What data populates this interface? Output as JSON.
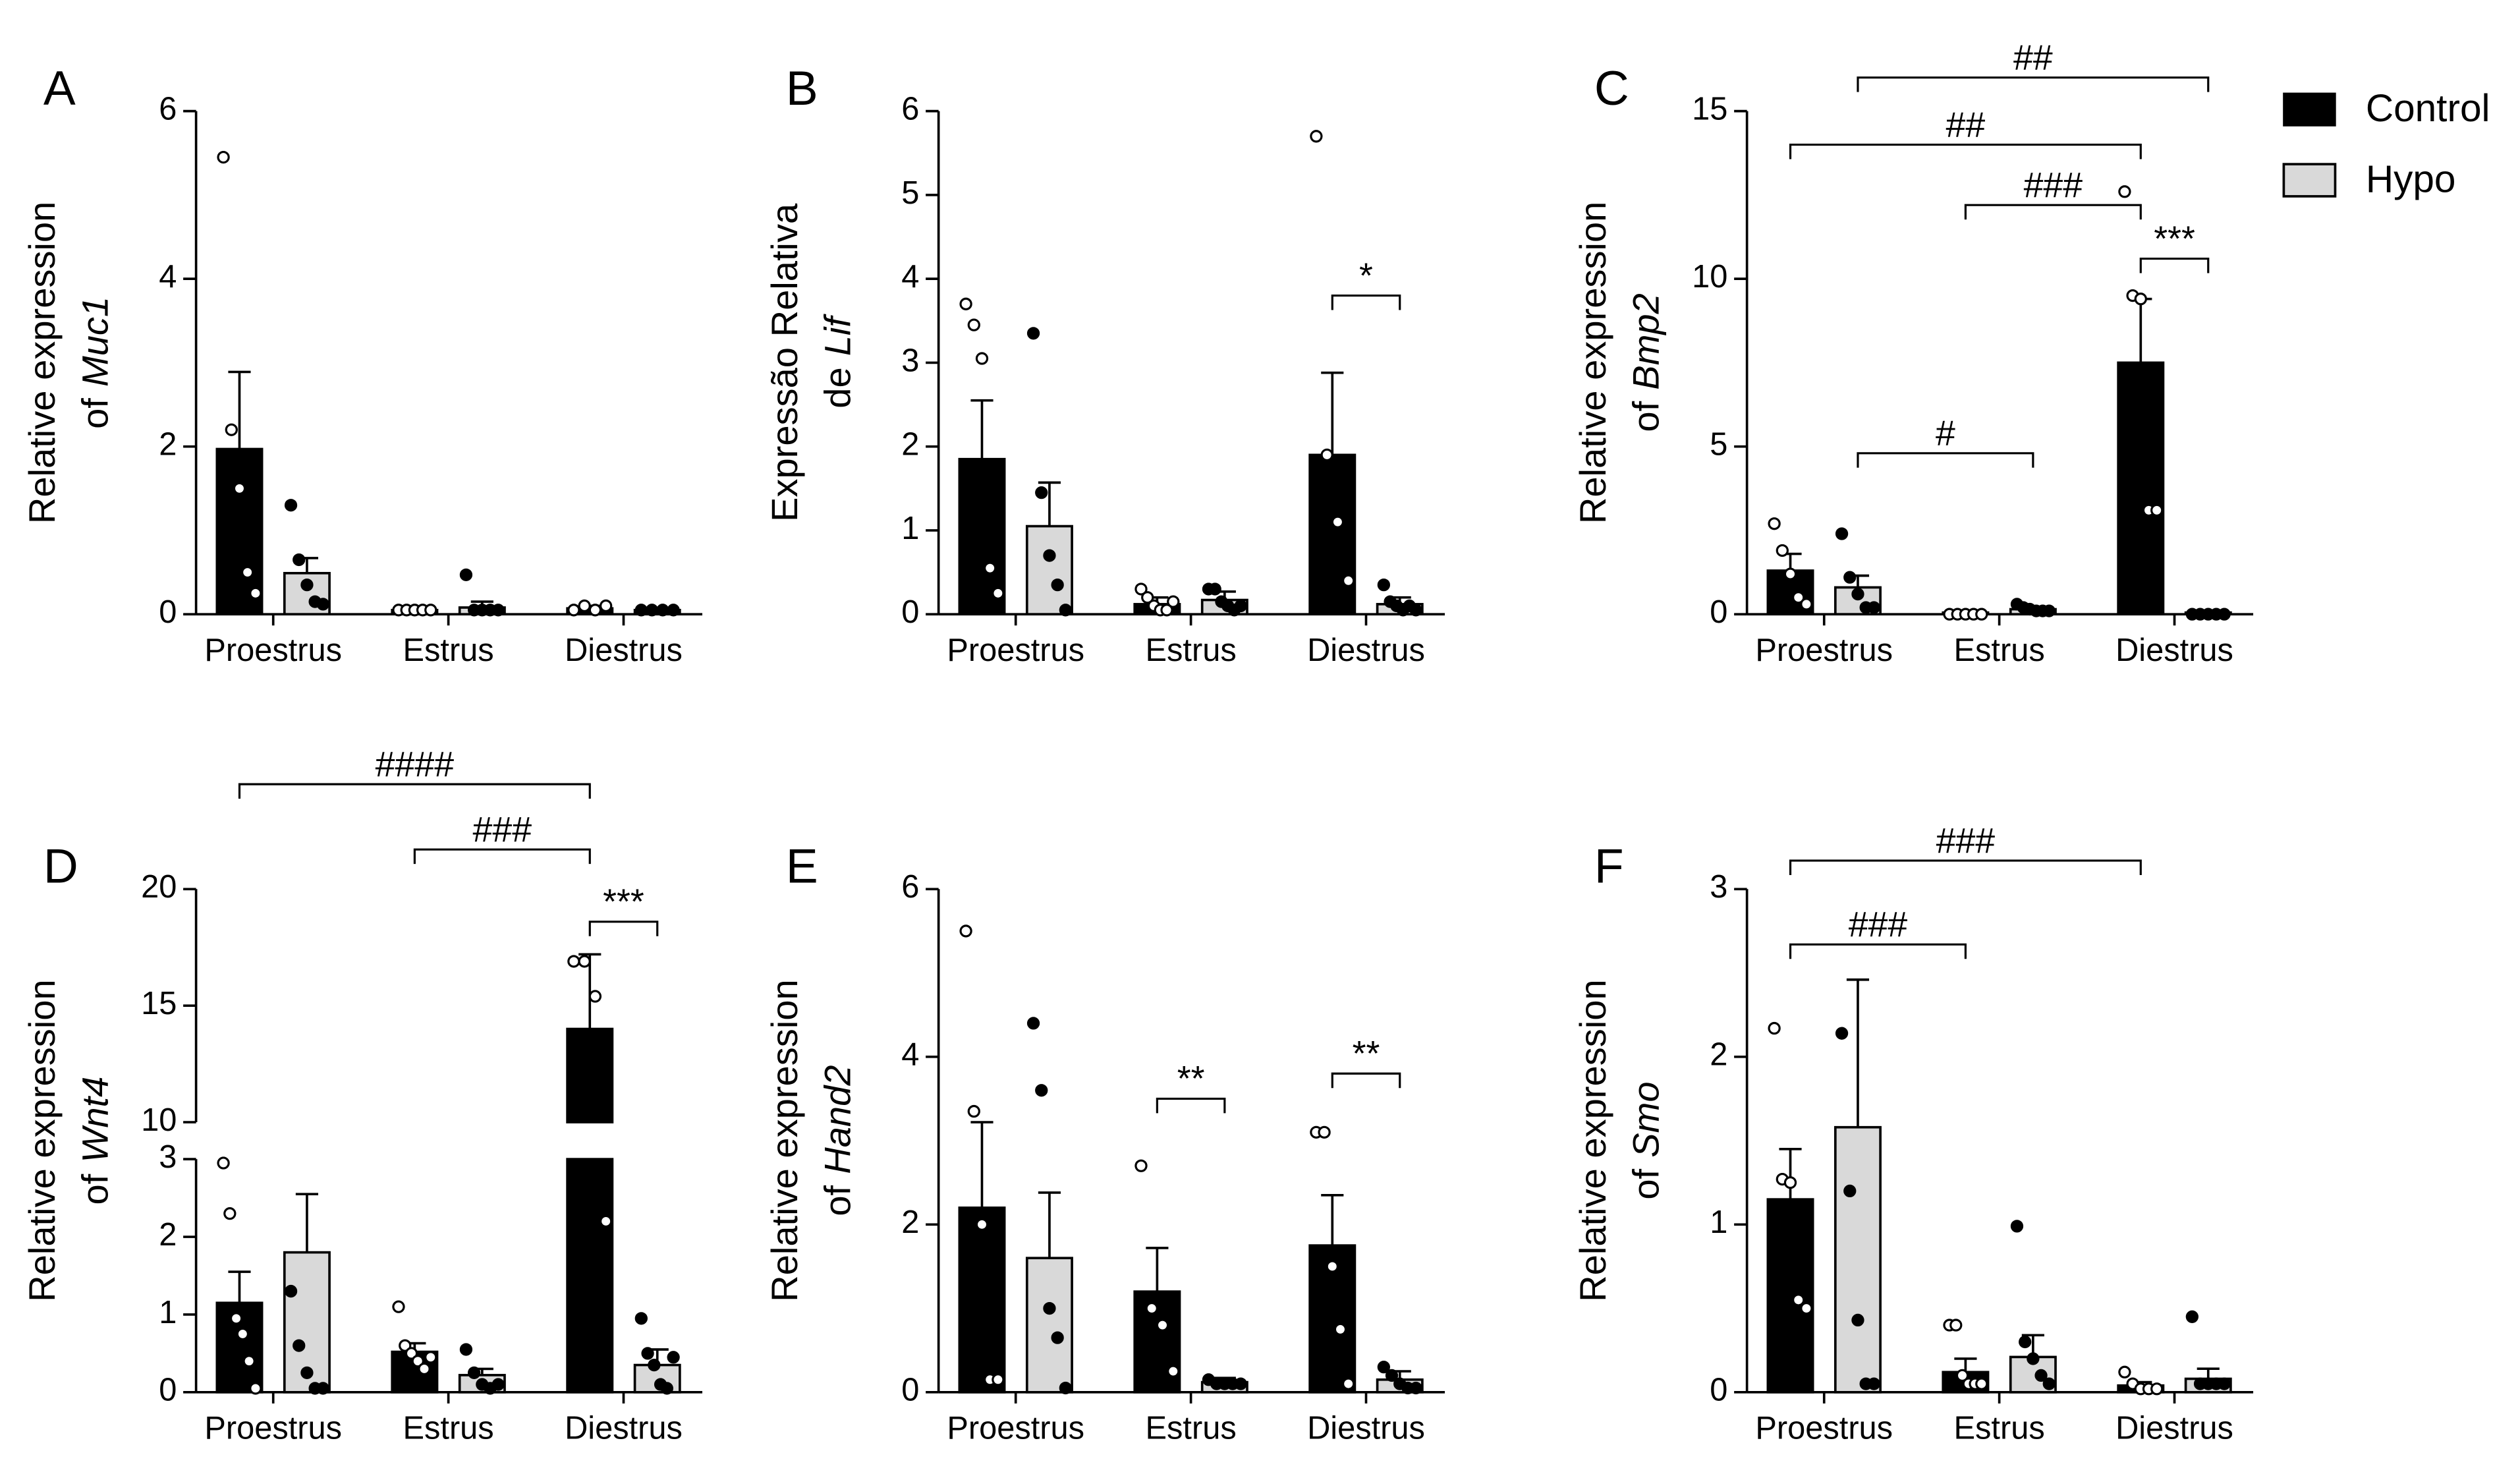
{
  "legend": [
    {
      "name": "Control",
      "color": "#000000"
    },
    {
      "name": "Hypo",
      "color": "#d9d9d9"
    }
  ],
  "chart_data": [
    {
      "type": "bar",
      "label": "A",
      "ylabel": [
        "Relative expression",
        "of"
      ],
      "gene": "Muc1",
      "categories": [
        "Proestrus",
        "Estrus",
        "Diestrus"
      ],
      "ylim": [
        0,
        6
      ],
      "yticks": [
        0,
        2,
        4,
        6
      ],
      "series": [
        {
          "values": [
            1.97,
            0.05,
            0.07
          ],
          "errors": [
            0.92,
            0.03,
            0.03
          ],
          "points": [
            [
              5.45,
              2.2,
              1.5,
              0.5,
              0.25
            ],
            [
              0.05,
              0.05,
              0.05,
              0.05,
              0.05
            ],
            [
              0.05,
              0.1,
              0.05,
              0.1
            ]
          ]
        },
        {
          "values": [
            0.49,
            0.08,
            0.05
          ],
          "errors": [
            0.18,
            0.07,
            0.01
          ],
          "points": [
            [
              1.3,
              0.65,
              0.35,
              0.15,
              0.12
            ],
            [
              0.47,
              0.05,
              0.05,
              0.05,
              0.05
            ],
            [
              0.05,
              0.05,
              0.05,
              0.05
            ]
          ]
        }
      ],
      "annotations": []
    },
    {
      "type": "bar",
      "label": "B",
      "ylabel": [
        "Expressão Relativa",
        "de"
      ],
      "gene": "Lif",
      "categories": [
        "Proestrus",
        "Estrus",
        "Diestrus"
      ],
      "ylim": [
        0,
        6
      ],
      "yticks": [
        0,
        1,
        2,
        3,
        4,
        5,
        6
      ],
      "series": [
        {
          "values": [
            1.85,
            0.12,
            1.9
          ],
          "errors": [
            0.7,
            0.08,
            0.98
          ],
          "points": [
            [
              3.7,
              3.45,
              3.05,
              0.55,
              0.25
            ],
            [
              0.3,
              0.2,
              0.1,
              0.05,
              0.05,
              0.15
            ],
            [
              5.7,
              1.9,
              1.1,
              0.4
            ]
          ]
        },
        {
          "values": [
            1.05,
            0.17,
            0.12
          ],
          "errors": [
            0.52,
            0.1,
            0.08
          ],
          "points": [
            [
              3.35,
              1.45,
              0.7,
              0.35,
              0.05
            ],
            [
              0.3,
              0.3,
              0.15,
              0.1,
              0.05,
              0.1
            ],
            [
              0.35,
              0.15,
              0.1,
              0.05,
              0.1,
              0.05
            ]
          ]
        }
      ],
      "annotations": [
        "*"
      ]
    },
    {
      "type": "bar",
      "label": "C",
      "ylabel": [
        "Relative expression",
        "of"
      ],
      "gene": "Bmp2",
      "categories": [
        "Proestrus",
        "Estrus",
        "Diestrus"
      ],
      "ylim": [
        0,
        15
      ],
      "yticks": [
        0,
        5,
        10,
        15
      ],
      "series": [
        {
          "values": [
            1.3,
            0.05,
            7.5
          ],
          "errors": [
            0.5,
            0.02,
            1.9
          ],
          "points": [
            [
              2.7,
              1.9,
              1.2,
              0.5,
              0.3
            ],
            [
              0,
              0,
              0,
              0,
              0
            ],
            [
              12.6,
              9.5,
              9.4,
              3.1,
              3.1
            ]
          ]
        },
        {
          "values": [
            0.8,
            0.15,
            0.05
          ],
          "errors": [
            0.35,
            0.05,
            0.02
          ],
          "points": [
            [
              2.4,
              1.1,
              0.6,
              0.2,
              0.2
            ],
            [
              0.3,
              0.2,
              0.15,
              0.1,
              0.1,
              0.1
            ],
            [
              0,
              0,
              0,
              0,
              0
            ]
          ]
        }
      ],
      "annotations": [
        "##",
        "##",
        "###",
        "***",
        "#"
      ]
    },
    {
      "type": "bar",
      "label": "D",
      "ylabel": [
        "Relative expression",
        "of"
      ],
      "gene": "Wnt4",
      "categories": [
        "Proestrus",
        "Estrus",
        "Diestrus"
      ],
      "ylim": [
        0,
        20
      ],
      "ybreak": [
        3,
        10
      ],
      "yticks": [
        0,
        1,
        2,
        3,
        10,
        15,
        20
      ],
      "series": [
        {
          "values": [
            1.15,
            0.52,
            14
          ],
          "errors": [
            0.4,
            0.11,
            3.2
          ],
          "points": [
            [
              2.95,
              2.3,
              0.95,
              0.75,
              0.4,
              0.05
            ],
            [
              1.1,
              0.6,
              0.5,
              0.4,
              0.3,
              0.45
            ],
            [
              16.9,
              16.9,
              15.4,
              2.2
            ]
          ]
        },
        {
          "values": [
            1.8,
            0.22,
            0.35
          ],
          "errors": [
            0.75,
            0.08,
            0.2
          ],
          "points": [
            [
              1.3,
              0.6,
              0.25,
              0.05,
              0.05
            ],
            [
              0.55,
              0.25,
              0.1,
              0.05,
              0.1
            ],
            [
              0.95,
              0.5,
              0.35,
              0.1,
              0.05,
              0.45
            ]
          ]
        }
      ],
      "annotations": [
        "####",
        "###",
        "***"
      ]
    },
    {
      "type": "bar",
      "label": "E",
      "ylabel": [
        "Relative expression",
        "of"
      ],
      "gene": "Hand2",
      "categories": [
        "Proestrus",
        "Estrus",
        "Diestrus"
      ],
      "ylim": [
        0,
        6
      ],
      "yticks": [
        0,
        2,
        4,
        6
      ],
      "series": [
        {
          "values": [
            2.2,
            1.2,
            1.75
          ],
          "errors": [
            1.02,
            0.52,
            0.6
          ],
          "points": [
            [
              5.5,
              3.35,
              2.0,
              0.15,
              0.15
            ],
            [
              2.7,
              1.0,
              0.8,
              0.25
            ],
            [
              3.1,
              3.1,
              1.5,
              0.75,
              0.1
            ]
          ]
        },
        {
          "values": [
            1.6,
            0.12,
            0.15
          ],
          "errors": [
            0.78,
            0.05,
            0.1
          ],
          "points": [
            [
              4.4,
              3.6,
              1.0,
              0.65,
              0.05
            ],
            [
              0.15,
              0.1,
              0.1,
              0.1,
              0.1
            ],
            [
              0.3,
              0.2,
              0.1,
              0.05,
              0.05
            ]
          ]
        }
      ],
      "annotations": [
        "**",
        "**"
      ]
    },
    {
      "type": "bar",
      "label": "F",
      "ylabel": [
        "Relative expression",
        "of"
      ],
      "gene": "Smo",
      "categories": [
        "Proestrus",
        "Estrus",
        "Diestrus"
      ],
      "ylim": [
        0,
        3
      ],
      "yticks": [
        0,
        1,
        2,
        3
      ],
      "series": [
        {
          "values": [
            1.15,
            0.12,
            0.04
          ],
          "errors": [
            0.3,
            0.08,
            0.02
          ],
          "points": [
            [
              2.17,
              1.27,
              1.25,
              0.55,
              0.5
            ],
            [
              0.4,
              0.4,
              0.1,
              0.05,
              0.05,
              0.05
            ],
            [
              0.12,
              0.05,
              0.02,
              0.02,
              0.02
            ]
          ]
        },
        {
          "values": [
            1.58,
            0.21,
            0.08
          ],
          "errors": [
            0.88,
            0.13,
            0.06
          ],
          "points": [
            [
              2.14,
              1.2,
              0.43,
              0.05,
              0.05
            ],
            [
              0.99,
              0.3,
              0.2,
              0.1,
              0.05
            ],
            [
              0.45,
              0.05,
              0.05,
              0.05,
              0.05
            ]
          ]
        }
      ],
      "annotations": [
        "###",
        "###"
      ]
    }
  ]
}
